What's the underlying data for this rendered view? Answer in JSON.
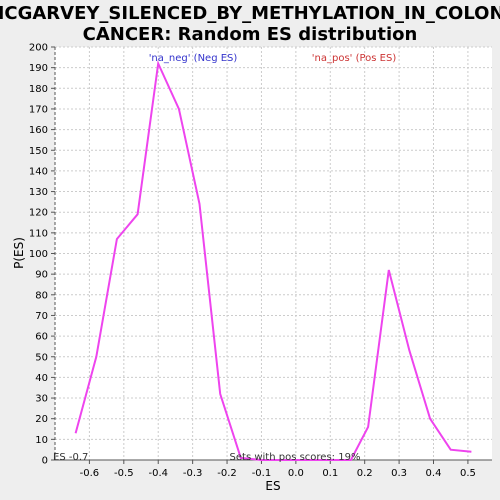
{
  "chart_data": {
    "type": "line",
    "title_line1": "MCGARVEY_SILENCED_BY_METHYLATION_IN_COLON_",
    "title_line2": "CANCER: Random ES distribution",
    "xlabel": "ES",
    "ylabel": "P(ES)",
    "xlim": [
      -0.7,
      0.57
    ],
    "ylim": [
      0,
      200
    ],
    "xticks": [
      -0.6,
      -0.5,
      -0.4,
      -0.3,
      -0.2,
      -0.1,
      0.0,
      0.1,
      0.2,
      0.3,
      0.4,
      0.5
    ],
    "xtick_labels": [
      "-0.6",
      "-0.5",
      "-0.4",
      "-0.3",
      "-0.2",
      "-0.1",
      "0.0",
      "0.1",
      "0.2",
      "0.3",
      "0.4",
      "0.5"
    ],
    "yticks": [
      0,
      10,
      20,
      30,
      40,
      50,
      60,
      70,
      80,
      90,
      100,
      110,
      120,
      130,
      140,
      150,
      160,
      170,
      180,
      190,
      200
    ],
    "grid": true,
    "legend": {
      "neg": "'na_neg' (Neg ES)",
      "pos": "'na_pos' (Pos ES)"
    },
    "annotations": {
      "left_bottom": "ES -0.7",
      "center_bottom": "Sets with pos scores: 19%"
    },
    "series": [
      {
        "color": "#ee44ee",
        "x": [
          -0.64,
          -0.58,
          -0.52,
          -0.46,
          -0.4,
          -0.34,
          -0.28,
          -0.22,
          -0.16,
          -0.1,
          -0.04,
          0.03,
          0.1,
          0.16,
          0.21,
          0.27,
          0.33,
          0.39,
          0.45,
          0.51
        ],
        "y": [
          13,
          50,
          107,
          119,
          192,
          170,
          124,
          32,
          1,
          0,
          0,
          0,
          0,
          0,
          16,
          92,
          53,
          20,
          5,
          4
        ]
      }
    ]
  }
}
